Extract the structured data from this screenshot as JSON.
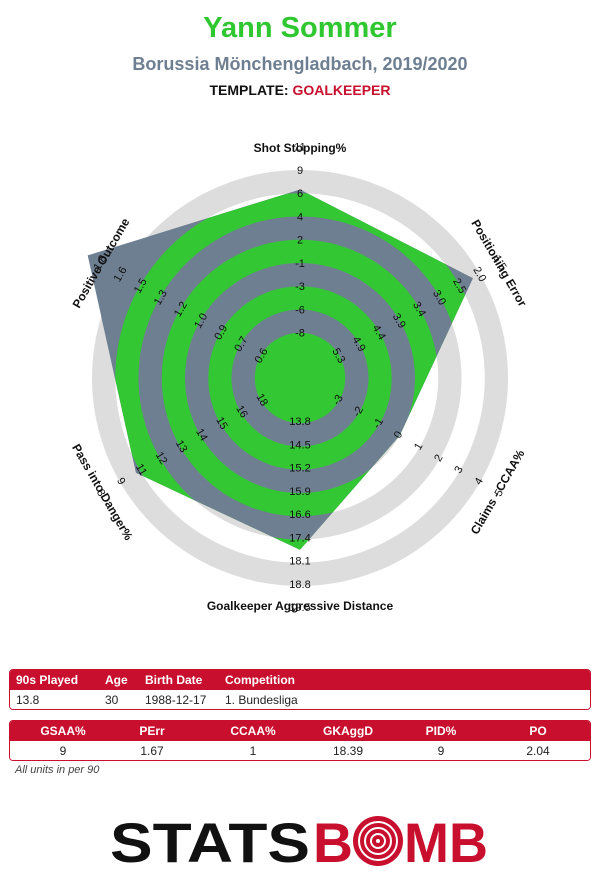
{
  "header": {
    "player_name": "Yann Sommer",
    "team_season": "Borussia Mönchengladbach, 2019/2020",
    "template_label": "TEMPLATE:",
    "template_value": "GOALKEEPER"
  },
  "colors": {
    "green": "#33c733",
    "slate": "#6e7f91",
    "ring": "#dddddd",
    "red": "#c8102e"
  },
  "chart_data": {
    "type": "radar",
    "axes": [
      {
        "label": "Shot Stopping%",
        "ticks": [
          "-8",
          "-6",
          "-3",
          "-1",
          "2",
          "4",
          "6",
          "9",
          "11"
        ],
        "range": [
          -8,
          11
        ],
        "value": 9
      },
      {
        "label": "Positioning Error",
        "ticks": [
          "5.3",
          "4.9",
          "4.4",
          "3.9",
          "3.4",
          "3.0",
          "2.5",
          "2.0",
          "1.5"
        ],
        "range": [
          5.3,
          1.5
        ],
        "value": 1.67
      },
      {
        "label": "Claims - CCAA%",
        "ticks": [
          "-3",
          "-2",
          "-1",
          "0",
          "1",
          "2",
          "3",
          "4",
          "5"
        ],
        "range": [
          -3,
          5
        ],
        "value": 1
      },
      {
        "label": "Goalkeeper Aggressive Distance",
        "ticks": [
          "13.8",
          "14.5",
          "15.2",
          "15.9",
          "16.6",
          "17.4",
          "18.1",
          "18.8",
          "19.5"
        ],
        "range": [
          13.8,
          19.5
        ],
        "value": 18.39
      },
      {
        "label": "Pass into Danger%",
        "ticks": [
          "18",
          "16",
          "15",
          "14",
          "13",
          "12",
          "11",
          "9",
          "8"
        ],
        "range": [
          18,
          8
        ],
        "value": 9
      },
      {
        "label": "Positive Outcome",
        "ticks": [
          "0.6",
          "0.7",
          "0.9",
          "1.0",
          "1.2",
          "1.3",
          "1.5",
          "1.6",
          "1.8"
        ],
        "range": [
          0.6,
          1.8
        ],
        "value": 2.04
      }
    ]
  },
  "info_table": {
    "headers": [
      "90s Played",
      "Age",
      "Birth Date",
      "Competition"
    ],
    "values": [
      "13.8",
      "30",
      "1988-12-17",
      "1. Bundesliga"
    ]
  },
  "stats_table": {
    "headers": [
      "GSAA%",
      "PErr",
      "CCAA%",
      "GKAggD",
      "PID%",
      "PO"
    ],
    "values": [
      "9",
      "1.67",
      "1",
      "18.39",
      "9",
      "2.04"
    ]
  },
  "footnote": "All units in per 90",
  "logo": {
    "part1": "STATS",
    "part2": "B",
    "part3": "MB"
  }
}
